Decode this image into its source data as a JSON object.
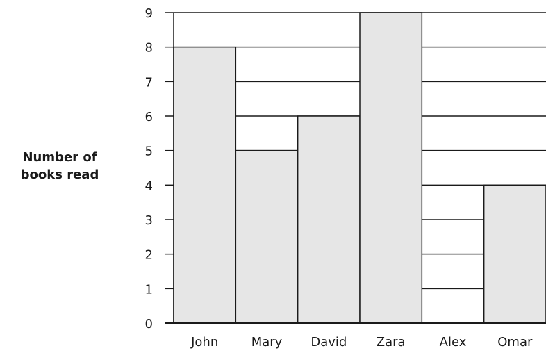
{
  "chart_data": {
    "type": "bar",
    "categories": [
      "John",
      "Mary",
      "David",
      "Zara",
      "Alex",
      "Omar"
    ],
    "values": [
      8,
      5,
      6,
      9,
      0,
      4
    ],
    "title": "",
    "xlabel": "",
    "ylabel_lines": [
      "Number of",
      "books read"
    ],
    "ylim": [
      0,
      9
    ],
    "yticks": [
      0,
      1,
      2,
      3,
      4,
      5,
      6,
      7,
      8,
      9
    ],
    "grid": "horizontal",
    "colors": {
      "bar_fill": "#e6e6e6",
      "bar_stroke": "#1a1a1a",
      "grid": "#1a1a1a",
      "axis": "#1a1a1a"
    }
  }
}
